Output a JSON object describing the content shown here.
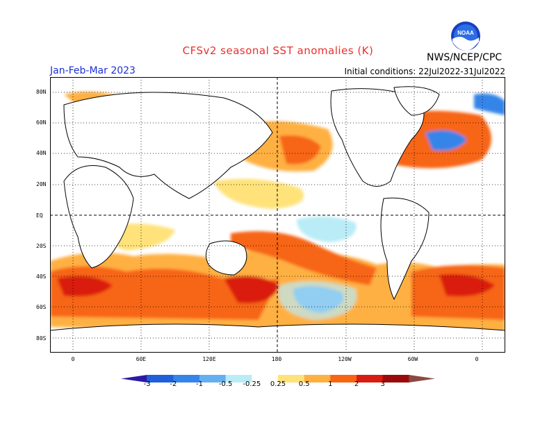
{
  "title": "CFSv2 seasonal SST anomalies (K)",
  "agency": "NWS/NCEP/CPC",
  "season": "Jan-Feb-Mar 2023",
  "initial_conditions": "Initial conditions: 22Jul2022-31Jul2022",
  "logo": {
    "text": "NOAA",
    "icon": "noaa-logo-icon"
  },
  "lat_labels": [
    "80N",
    "60N",
    "40N",
    "20N",
    "EQ",
    "20S",
    "40S",
    "60S",
    "80S"
  ],
  "lon_labels": [
    "0",
    "60E",
    "120E",
    "180",
    "120W",
    "60W",
    "0"
  ],
  "colorbar": {
    "labels": [
      "-3",
      "-2",
      "-1",
      "-0.5",
      "-0.25",
      "0.25",
      "0.5",
      "1",
      "2",
      "3"
    ],
    "colors": [
      "#2a1aa6",
      "#1f5fd9",
      "#3585e8",
      "#64aff0",
      "#b9ecf6",
      "#ffffff",
      "#ffe27a",
      "#ffb043",
      "#f76512",
      "#d91c11",
      "#9c0b0b",
      "#8a4a42"
    ]
  }
}
